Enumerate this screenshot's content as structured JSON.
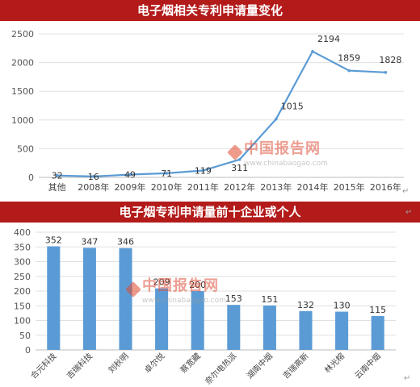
{
  "chart_data": [
    {
      "type": "line",
      "title": "电子烟相关专利申请量变化",
      "categories": [
        "其他",
        "2008年",
        "2009年",
        "2010年",
        "2011年",
        "2012年",
        "2013年",
        "2014年",
        "2015年",
        "2016年"
      ],
      "values": [
        32,
        16,
        49,
        71,
        119,
        311,
        1015,
        2194,
        1859,
        1828
      ],
      "yticks": [
        "0",
        "500",
        "1000",
        "1500",
        "2000",
        "2500"
      ],
      "ylim": [
        0,
        2500
      ],
      "grid": true,
      "color": "#5b9bd5"
    },
    {
      "type": "bar",
      "title": "电子烟专利申请量前十企业或个人",
      "categories": [
        "合元科技",
        "吉瑞科技",
        "刘秋明",
        "卓尔悦",
        "蔡宽藏",
        "奈尔电热派",
        "湖南中烟",
        "吉瑞高新",
        "林光榕",
        "云南中烟"
      ],
      "values": [
        352,
        347,
        346,
        209,
        200,
        153,
        151,
        132,
        130,
        115
      ],
      "yticks": [
        "0",
        "50",
        "100",
        "150",
        "200",
        "250",
        "300",
        "350",
        "400"
      ],
      "ylim": [
        0,
        400
      ],
      "grid": true,
      "color": "#5b9bd5"
    }
  ],
  "watermarks": [
    {
      "text": "中国报告网",
      "url": "www.chinabaogao.com"
    },
    {
      "text": "中国报告网",
      "url": "www.chinabaogao.com"
    }
  ],
  "glyphs": {
    "return_mark": "↵"
  }
}
